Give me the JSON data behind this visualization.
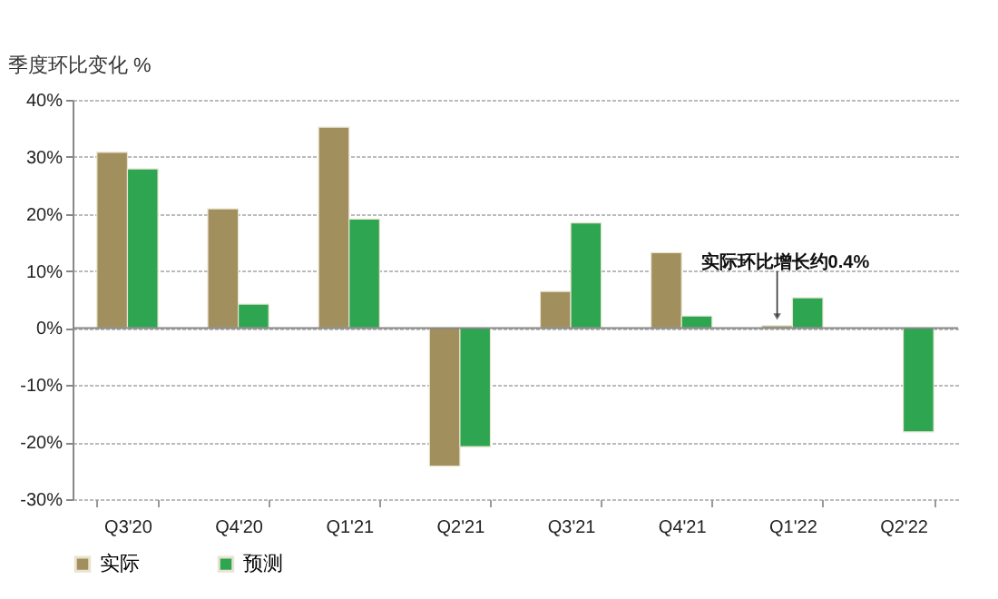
{
  "chart_data": {
    "type": "bar",
    "ylabel": "季度环比变化 %",
    "categories": [
      "Q3'20",
      "Q4'20",
      "Q1'21",
      "Q2'21",
      "Q3'21",
      "Q4'21",
      "Q1'22",
      "Q2'22"
    ],
    "series": [
      {
        "name": "实际",
        "color": "#a28f5e",
        "values": [
          30.8,
          20.9,
          35.2,
          -24.2,
          6.4,
          13.2,
          0.4,
          null
        ]
      },
      {
        "name": "预测",
        "color": "#2ea550",
        "values": [
          27.9,
          4.2,
          19.1,
          -20.8,
          18.4,
          2.1,
          5.3,
          -18.2
        ]
      }
    ],
    "ylim": [
      -30,
      40
    ],
    "yticks": [
      {
        "value": -30,
        "label": "-30%"
      },
      {
        "value": -20,
        "label": "-20%"
      },
      {
        "value": -10,
        "label": "-10%"
      },
      {
        "value": 0,
        "label": "0%"
      },
      {
        "value": 10,
        "label": "10%"
      },
      {
        "value": 20,
        "label": "20%"
      },
      {
        "value": 30,
        "label": "30%"
      },
      {
        "value": 40,
        "label": "40%"
      }
    ],
    "grid": "y",
    "legend": "bottom",
    "annotations": [
      {
        "text": "实际环比增长约0.4%",
        "x": "Q1'22",
        "y": 0.4
      }
    ]
  }
}
